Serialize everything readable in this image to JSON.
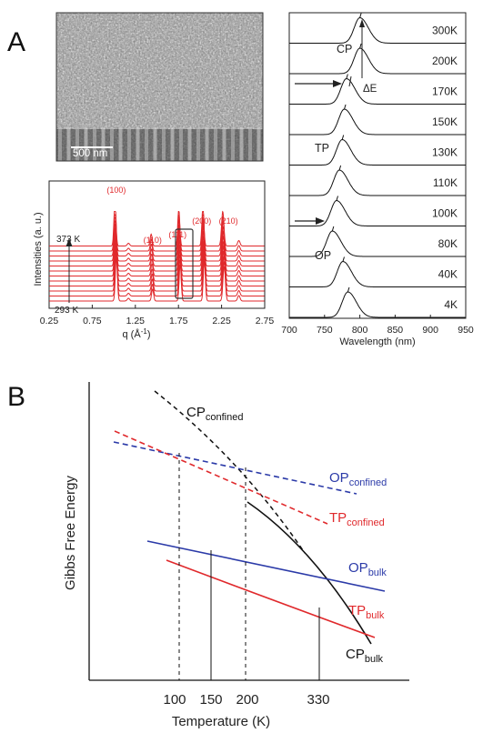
{
  "panel_a": {
    "label": "A",
    "sem": {
      "scale_label": "500 nm"
    },
    "xrd": {
      "ylabel": "Intensities (a. u.)",
      "xlabel_main": "q (Å",
      "xlabel_sup": "-1",
      "xlabel_close": ")",
      "xticks": [
        "0.25",
        "0.75",
        "1.25",
        "1.75",
        "2.25",
        "2.75"
      ],
      "temp_top": "373 K",
      "temp_bottom": "293 K",
      "peaks": [
        {
          "label": "(100)",
          "q": 1.03
        },
        {
          "label": "(110)",
          "q": 1.45
        },
        {
          "label": "(111)",
          "q": 1.77
        },
        {
          "label": "(200)",
          "q": 2.05
        },
        {
          "label": "(210)",
          "q": 2.28
        }
      ],
      "curve_color": "#e0292c"
    },
    "pl": {
      "xlabel": "Wavelength (nm)",
      "xticks": [
        "700",
        "750",
        "800",
        "850",
        "900",
        "950"
      ],
      "temperatures": [
        "300K",
        "200K",
        "170K",
        "150K",
        "130K",
        "110K",
        "100K",
        "80K",
        "40K",
        "4K"
      ],
      "peak_nm": [
        800,
        800,
        781,
        778,
        775,
        771,
        767,
        761,
        776,
        783
      ],
      "phase_labels": {
        "cp": "CP",
        "tp": "TP",
        "op": "OP",
        "delta": "ΔE"
      }
    }
  },
  "panel_b": {
    "label": "B",
    "ylabel": "Gibbs Free Energy",
    "xlabel": "Temperature (K)",
    "xticks": [
      "100",
      "150",
      "200",
      "330"
    ],
    "curves": [
      {
        "base": "CP",
        "sub": "confined",
        "color": "#111111"
      },
      {
        "base": "OP",
        "sub": "confined",
        "color": "#2b3aa8"
      },
      {
        "base": "TP",
        "sub": "confined",
        "color": "#e0292c"
      },
      {
        "base": "OP",
        "sub": "bulk",
        "color": "#2b3aa8"
      },
      {
        "base": "TP",
        "sub": "bulk",
        "color": "#e0292c"
      },
      {
        "base": "CP",
        "sub": "bulk",
        "color": "#111111"
      }
    ]
  }
}
